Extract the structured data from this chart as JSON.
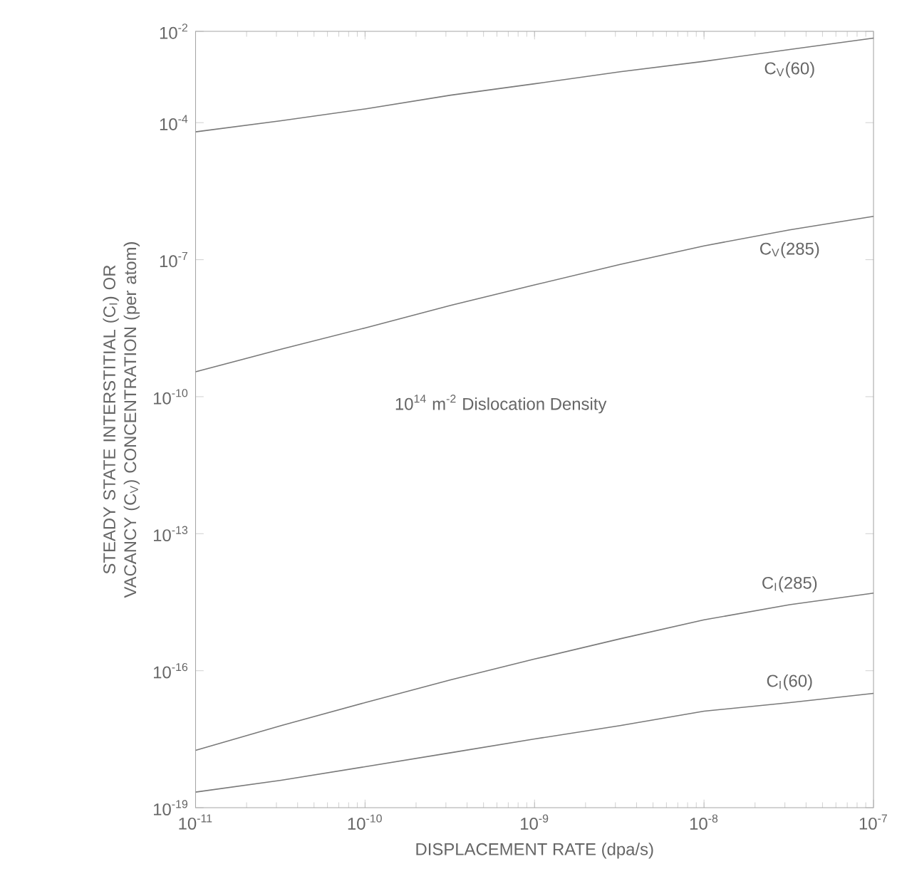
{
  "chart_data": {
    "type": "line",
    "log": "xy",
    "xlabel": "DISPLACEMENT RATE (dpa/s)",
    "ylabel": "STEADY STATE INTERSTITIAL (C$_{I}$) OR VACANCY (C$_{V}$) CONCENTRATION (per atom)",
    "annotations": [
      "10$^{14}$ m$^{-2}$ Dislocation Density"
    ],
    "x": [
      1e-11,
      3.2e-11,
      1e-10,
      3.2e-10,
      1e-09,
      3.2e-09,
      1e-08,
      3.2e-08,
      1e-07
    ],
    "series": [
      {
        "name": "C$_{V}$(60)",
        "color": "#7a7a7a",
        "values": [
          6.3e-05,
          0.00011,
          0.0002,
          0.0004,
          0.00071,
          0.0013,
          0.0022,
          0.004,
          0.0071
        ]
      },
      {
        "name": "C$_{V}$(285)",
        "color": "#7a7a7a",
        "values": [
          3.5e-10,
          1.1e-09,
          3.2e-09,
          1e-08,
          2.8e-08,
          7.9e-08,
          2e-07,
          4.5e-07,
          8.9e-07
        ]
      },
      {
        "name": "C$_{I}$(285)",
        "color": "#7a7a7a",
        "values": [
          1.8e-18,
          6.3e-18,
          2e-17,
          6.3e-17,
          1.8e-16,
          5e-16,
          1.3e-15,
          2.8e-15,
          5e-15
        ]
      },
      {
        "name": "C$_{I}$(60)",
        "color": "#7a7a7a",
        "values": [
          2.2e-19,
          4e-19,
          7.9e-19,
          1.6e-18,
          3.2e-18,
          6.3e-18,
          1.3e-17,
          2e-17,
          3.2e-17
        ]
      }
    ],
    "xlim": [
      1e-11,
      1e-07
    ],
    "ylim": [
      1e-19,
      0.01
    ],
    "xticks": [
      {
        "value": 1e-11,
        "label": "10$^{-11}$"
      },
      {
        "value": 1e-10,
        "label": "10$^{-10}$"
      },
      {
        "value": 1e-09,
        "label": "10$^{-9}$"
      },
      {
        "value": 1e-08,
        "label": "10$^{-8}$"
      },
      {
        "value": 1e-07,
        "label": "10$^{-7}$"
      }
    ],
    "yticks": [
      {
        "value": 1e-19,
        "label": "10$^{-19}$"
      },
      {
        "value": 1e-16,
        "label": "10$^{-16}$"
      },
      {
        "value": 1e-13,
        "label": "10$^{-13}$"
      },
      {
        "value": 1e-10,
        "label": "10$^{-10}$"
      },
      {
        "value": 1e-07,
        "label": "10$^{-7}$"
      },
      {
        "value": 0.0001,
        "label": "10$^{-4}$"
      },
      {
        "value": 0.01,
        "label": "10$^{-2}$"
      }
    ]
  }
}
